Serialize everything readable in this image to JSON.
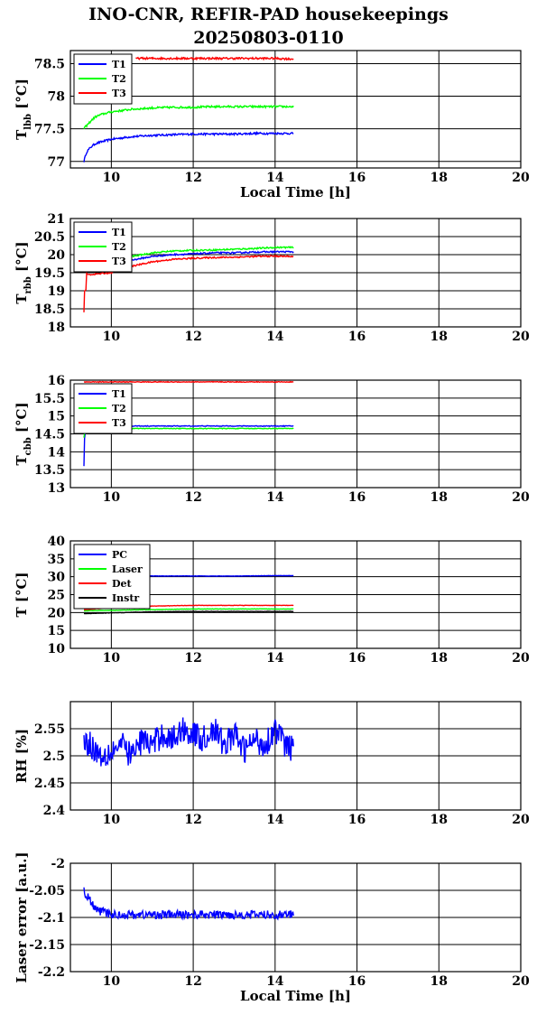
{
  "title_line1": "INO-CNR, REFIR-PAD housekeepings",
  "title_line2": "20250803-0110",
  "chart_data": [
    {
      "type": "line",
      "ylabel": "T_lbb [°C]",
      "ylabel_main": "T",
      "ylabel_sub": "lbb",
      "ylabel_unit": " [°C]",
      "xlabel": "Local Time [h]",
      "xlim": [
        9,
        20
      ],
      "ylim": [
        76.9,
        78.7
      ],
      "yticks": [
        77,
        77.5,
        78,
        78.5
      ],
      "xticks": [
        10,
        12,
        14,
        16,
        18,
        20
      ],
      "grid": true,
      "legend_position": "top-left",
      "series": [
        {
          "name": "T1",
          "color": "#0000ff",
          "x": [
            9.33,
            9.35,
            9.4,
            9.5,
            9.6,
            9.75,
            10,
            10.5,
            11,
            11.5,
            12,
            12.5,
            13,
            13.5,
            14,
            14.45
          ],
          "y": [
            77.0,
            77.05,
            77.15,
            77.22,
            77.27,
            77.3,
            77.34,
            77.38,
            77.4,
            77.41,
            77.42,
            77.42,
            77.42,
            77.43,
            77.43,
            77.43
          ],
          "noise": 0.015
        },
        {
          "name": "T2",
          "color": "#00ff00",
          "x": [
            9.33,
            9.35,
            9.4,
            9.5,
            9.6,
            9.75,
            10,
            10.5,
            11,
            11.5,
            12,
            12.5,
            13,
            13.5,
            14,
            14.45
          ],
          "y": [
            77.5,
            77.52,
            77.55,
            77.62,
            77.68,
            77.72,
            77.76,
            77.8,
            77.82,
            77.83,
            77.83,
            77.84,
            77.84,
            77.84,
            77.84,
            77.84
          ],
          "noise": 0.015
        },
        {
          "name": "T3",
          "color": "#ff0000",
          "x": [
            10.6,
            11,
            11.5,
            12,
            12.5,
            13,
            13.5,
            14,
            14.45
          ],
          "y": [
            78.58,
            78.58,
            78.58,
            78.58,
            78.58,
            78.58,
            78.58,
            78.58,
            78.57
          ],
          "noise": 0.015
        }
      ]
    },
    {
      "type": "line",
      "ylabel": "T_rbb [°C]",
      "ylabel_main": "T",
      "ylabel_sub": "rbb",
      "ylabel_unit": " [°C]",
      "xlabel": "",
      "xlim": [
        9,
        20
      ],
      "ylim": [
        18,
        21
      ],
      "yticks": [
        18,
        18.5,
        19,
        19.5,
        20,
        20.5,
        21
      ],
      "xticks": [
        10,
        12,
        14,
        16,
        18,
        20
      ],
      "grid": true,
      "legend_position": "top-left",
      "series": [
        {
          "name": "T1",
          "color": "#0000ff",
          "x": [
            9.35,
            9.5,
            10,
            10.5,
            11,
            11.5,
            12,
            12.5,
            13,
            13.5,
            14,
            14.45
          ],
          "y": [
            19.55,
            19.6,
            19.72,
            19.85,
            19.95,
            20.0,
            20.02,
            20.05,
            20.05,
            20.07,
            20.08,
            20.08
          ],
          "noise": 0.02
        },
        {
          "name": "T2",
          "color": "#00ff00",
          "x": [
            9.35,
            9.5,
            10,
            10.5,
            11,
            11.5,
            12,
            12.5,
            13,
            13.5,
            14,
            14.45
          ],
          "y": [
            19.6,
            19.65,
            19.8,
            19.95,
            20.05,
            20.1,
            20.12,
            20.13,
            20.15,
            20.17,
            20.2,
            20.2
          ],
          "noise": 0.02
        },
        {
          "name": "T3",
          "color": "#ff0000",
          "x": [
            9.33,
            9.34,
            9.36,
            9.37,
            9.39,
            9.4,
            9.5,
            10,
            10.5,
            11,
            11.5,
            12,
            12.5,
            13,
            13.5,
            14,
            14.45
          ],
          "y": [
            18.4,
            18.9,
            19.2,
            18.6,
            19.5,
            19.45,
            19.45,
            19.5,
            19.68,
            19.8,
            19.87,
            19.9,
            19.92,
            19.93,
            19.95,
            19.96,
            19.95
          ],
          "noise": 0.02
        }
      ]
    },
    {
      "type": "line",
      "ylabel": "T_cbb [°C]",
      "ylabel_main": "T",
      "ylabel_sub": "cbb",
      "ylabel_unit": " [°C]",
      "xlabel": "",
      "xlim": [
        9,
        20
      ],
      "ylim": [
        13,
        16
      ],
      "yticks": [
        13,
        13.5,
        14,
        14.5,
        15,
        15.5,
        16
      ],
      "xticks": [
        10,
        12,
        14,
        16,
        18,
        20
      ],
      "grid": true,
      "legend_position": "top-left",
      "series": [
        {
          "name": "T1",
          "color": "#0000ff",
          "x": [
            9.33,
            9.34,
            9.36,
            9.38,
            9.42,
            9.5,
            10,
            11,
            12,
            13,
            14,
            14.45
          ],
          "y": [
            13.6,
            14.3,
            14.5,
            14.68,
            14.7,
            14.72,
            14.72,
            14.72,
            14.72,
            14.72,
            14.72,
            14.72
          ],
          "noise": 0.01
        },
        {
          "name": "T2",
          "color": "#00ff00",
          "x": [
            9.33,
            9.36,
            9.4,
            9.5,
            10,
            11,
            12,
            13,
            14,
            14.45
          ],
          "y": [
            14.4,
            14.6,
            14.63,
            14.65,
            14.65,
            14.65,
            14.65,
            14.65,
            14.65,
            14.65
          ],
          "noise": 0.01
        },
        {
          "name": "T3",
          "color": "#ff0000",
          "x": [
            9.33,
            9.5,
            10,
            11,
            12,
            13,
            14,
            14.45
          ],
          "y": [
            15.95,
            15.95,
            15.95,
            15.95,
            15.95,
            15.95,
            15.95,
            15.95
          ],
          "noise": 0.01
        }
      ]
    },
    {
      "type": "line",
      "ylabel": "T [°C]",
      "ylabel_main": "T [°C]",
      "ylabel_sub": "",
      "ylabel_unit": "",
      "xlabel": "",
      "xlim": [
        9,
        20
      ],
      "ylim": [
        10,
        40
      ],
      "yticks": [
        10,
        15,
        20,
        25,
        30,
        35,
        40
      ],
      "xticks": [
        10,
        12,
        14,
        16,
        18,
        20
      ],
      "grid": true,
      "legend_position": "top-left",
      "series": [
        {
          "name": "PC",
          "color": "#0000ff",
          "x": [
            9.33,
            10,
            11,
            12,
            13,
            14,
            14.45
          ],
          "y": [
            30.2,
            30.2,
            30.2,
            30.2,
            30.2,
            30.3,
            30.3
          ],
          "noise": 0.05
        },
        {
          "name": "Laser",
          "color": "#00ff00",
          "x": [
            9.33,
            10,
            11,
            12,
            13,
            14,
            14.45
          ],
          "y": [
            20.5,
            20.6,
            20.8,
            21.0,
            21.0,
            21.0,
            21.0
          ],
          "noise": 0.05
        },
        {
          "name": "Det",
          "color": "#ff0000",
          "x": [
            9.33,
            10,
            11,
            12,
            13,
            14,
            14.45
          ],
          "y": [
            20.8,
            21.3,
            21.8,
            22.0,
            22.0,
            22.0,
            22.0
          ],
          "noise": 0.05
        },
        {
          "name": "Instr",
          "color": "#000000",
          "x": [
            9.33,
            10,
            11,
            12,
            13,
            14,
            14.45
          ],
          "y": [
            19.7,
            19.9,
            20.2,
            20.3,
            20.3,
            20.3,
            20.3
          ],
          "noise": 0.05
        }
      ]
    },
    {
      "type": "line",
      "ylabel": "RH [%]",
      "ylabel_main": "RH [%]",
      "ylabel_sub": "",
      "ylabel_unit": "",
      "xlabel": "",
      "xlim": [
        9,
        20
      ],
      "ylim": [
        2.4,
        2.6
      ],
      "yticks": [
        2.4,
        2.45,
        2.5,
        2.55
      ],
      "xticks": [
        10,
        12,
        14,
        16,
        18,
        20
      ],
      "grid": true,
      "legend_position": "none",
      "series": [
        {
          "name": "",
          "color": "#0000ff",
          "x": [
            9.33,
            9.5,
            9.75,
            10,
            10.25,
            10.5,
            10.75,
            11,
            11.25,
            11.5,
            11.75,
            12,
            12.25,
            12.5,
            12.75,
            13,
            13.25,
            13.5,
            13.75,
            14,
            14.25,
            14.45
          ],
          "y": [
            2.53,
            2.52,
            2.5,
            2.51,
            2.52,
            2.5,
            2.53,
            2.52,
            2.54,
            2.53,
            2.55,
            2.54,
            2.53,
            2.55,
            2.52,
            2.54,
            2.51,
            2.53,
            2.52,
            2.55,
            2.52,
            2.51
          ],
          "noise": 0.025
        }
      ]
    },
    {
      "type": "line",
      "ylabel": "Laser error [a.u.]",
      "ylabel_main": "Laser error [a.u.]",
      "ylabel_sub": "",
      "ylabel_unit": "",
      "xlabel": "Local Time [h]",
      "xlim": [
        9,
        20
      ],
      "ylim": [
        -2.2,
        -2.0
      ],
      "yticks": [
        -2.2,
        -2.15,
        -2.1,
        -2.05,
        -2
      ],
      "xticks": [
        10,
        12,
        14,
        16,
        18,
        20
      ],
      "grid": true,
      "legend_position": "none",
      "series": [
        {
          "name": "",
          "color": "#0000ff",
          "x": [
            9.33,
            9.4,
            9.5,
            9.6,
            9.8,
            10,
            11,
            12,
            13,
            14,
            14.45
          ],
          "y": [
            -2.05,
            -2.06,
            -2.07,
            -2.085,
            -2.09,
            -2.095,
            -2.095,
            -2.095,
            -2.095,
            -2.095,
            -2.095
          ],
          "noise": 0.008
        }
      ]
    }
  ]
}
